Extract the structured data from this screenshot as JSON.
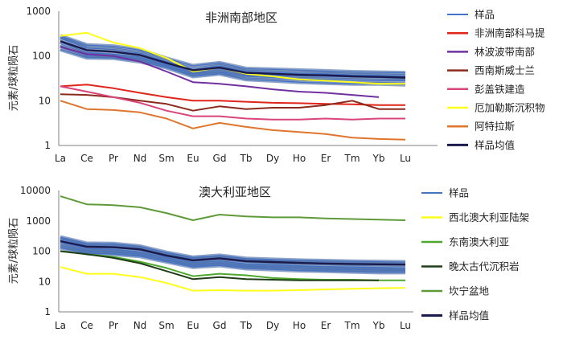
{
  "chart_data": [
    {
      "type": "line",
      "title": "非洲南部地区",
      "ylabel": "元素/球粒陨石",
      "yscale": "log",
      "ylim": [
        1,
        1000
      ],
      "yticks": [
        "1",
        "10",
        "100",
        "1000"
      ],
      "categories": [
        "La",
        "Ce",
        "Pr",
        "Nd",
        "Sm",
        "Eu",
        "Gd",
        "Tb",
        "Dy",
        "Ho",
        "Er",
        "Tm",
        "Yb",
        "Lu"
      ],
      "samples": {
        "name": "样品",
        "color": "#4472c4",
        "lines": [
          [
            250,
            150,
            140,
            115,
            75,
            50,
            60,
            45,
            43,
            41,
            40,
            38,
            37,
            36
          ],
          [
            205,
            120,
            110,
            95,
            65,
            45,
            52,
            40,
            38,
            36,
            35,
            34,
            33,
            32
          ],
          [
            170,
            105,
            100,
            85,
            60,
            40,
            45,
            35,
            33,
            31,
            30,
            29,
            28,
            28
          ],
          [
            140,
            92,
            90,
            75,
            55,
            35,
            40,
            30,
            28,
            26,
            25,
            24,
            24,
            23
          ],
          [
            280,
            175,
            165,
            135,
            88,
            60,
            70,
            52,
            50,
            48,
            46,
            44,
            43,
            42
          ]
        ]
      },
      "series": [
        {
          "name": "非洲南部科马提",
          "color": "#e0251b",
          "values": [
            21,
            23,
            19,
            15,
            12,
            10,
            10,
            9.5,
            9,
            8.8,
            8.5,
            8.3,
            8,
            8
          ]
        },
        {
          "name": "林波波带南部",
          "color": "#7030a0",
          "values": [
            160,
            110,
            100,
            75,
            45,
            26,
            24,
            21,
            18,
            16,
            15,
            13.5,
            12,
            null
          ]
        },
        {
          "name": "西南斯威士兰",
          "color": "#8b2a1c",
          "values": [
            14,
            13.5,
            12,
            10,
            8.5,
            6,
            7.5,
            6.5,
            7,
            7,
            8,
            10,
            6.5,
            6.5
          ]
        },
        {
          "name": "彭盖铁建造",
          "color": "#d9457a",
          "values": [
            21,
            16,
            12,
            9,
            6,
            4.5,
            4.5,
            4,
            3.8,
            3.8,
            4,
            3.8,
            4,
            4
          ]
        },
        {
          "name": "厄加勒斯沉积物",
          "color": "#ffff1a",
          "values": [
            280,
            330,
            200,
            150,
            90,
            45,
            55,
            40,
            35,
            30,
            28,
            26,
            24,
            24
          ]
        },
        {
          "name": "阿特拉斯",
          "color": "#e0752d",
          "values": [
            10,
            6.5,
            6.2,
            5.5,
            4,
            2.4,
            3.2,
            2.6,
            2.2,
            2,
            1.8,
            1.5,
            1.4,
            1.35
          ]
        }
      ],
      "mean": {
        "name": "样品均值",
        "color": "#1a1a4d",
        "values": [
          215,
          135,
          125,
          105,
          70,
          48,
          55,
          42,
          40,
          38,
          37,
          35,
          34,
          33
        ]
      }
    },
    {
      "type": "line",
      "title": "澳大利亚地区",
      "ylabel": "元素/球粒陨石",
      "yscale": "log",
      "ylim": [
        1,
        10000
      ],
      "yticks": [
        "1",
        "10",
        "100",
        "1000",
        "10000"
      ],
      "categories": [
        "La",
        "Ce",
        "Pr",
        "Nd",
        "Sm",
        "Eu",
        "Gd",
        "Tb",
        "Dy",
        "Ho",
        "Er",
        "Tm",
        "Yb",
        "Lu"
      ],
      "samples": {
        "name": "样品",
        "color": "#4472c4",
        "lines": [
          [
            250,
            150,
            145,
            120,
            75,
            52,
            60,
            48,
            45,
            42,
            40,
            38,
            37,
            36
          ],
          [
            200,
            120,
            115,
            95,
            62,
            42,
            48,
            38,
            36,
            33,
            31,
            30,
            29,
            28
          ],
          [
            160,
            100,
            95,
            80,
            52,
            35,
            40,
            32,
            30,
            28,
            26,
            25,
            24,
            24
          ],
          [
            130,
            85,
            80,
            68,
            45,
            30,
            34,
            27,
            25,
            23,
            22,
            21,
            20,
            20
          ],
          [
            290,
            180,
            175,
            145,
            90,
            62,
            72,
            57,
            53,
            50,
            48,
            46,
            45,
            44
          ]
        ]
      },
      "series": [
        {
          "name": "西北澳大利亚陆架",
          "color": "#ffff1a",
          "values": [
            30,
            18,
            18,
            14,
            9,
            5,
            5.2,
            5,
            5,
            5.2,
            5.5,
            5.8,
            6,
            6.2
          ]
        },
        {
          "name": "东南澳大利亚",
          "color": "#4ea72e",
          "values": [
            100,
            80,
            65,
            45,
            28,
            15,
            18,
            16,
            13,
            12,
            11.5,
            11.5,
            11,
            11
          ]
        },
        {
          "name": "晚太古代沉积岩",
          "color": "#1f3d17",
          "values": [
            100,
            80,
            60,
            40,
            22,
            12,
            14,
            12,
            11.5,
            11,
            11,
            11,
            11,
            null
          ]
        },
        {
          "name": "坎宁盆地",
          "color": "#5f9a3a",
          "values": [
            6500,
            3500,
            3300,
            2800,
            1800,
            1050,
            1600,
            1400,
            1300,
            1300,
            1200,
            1150,
            1100,
            1050
          ]
        }
      ],
      "mean": {
        "name": "样品均值",
        "color": "#1a1a4d",
        "values": [
          215,
          140,
          135,
          115,
          72,
          50,
          58,
          47,
          44,
          41,
          39,
          38,
          37,
          36
        ]
      }
    }
  ]
}
